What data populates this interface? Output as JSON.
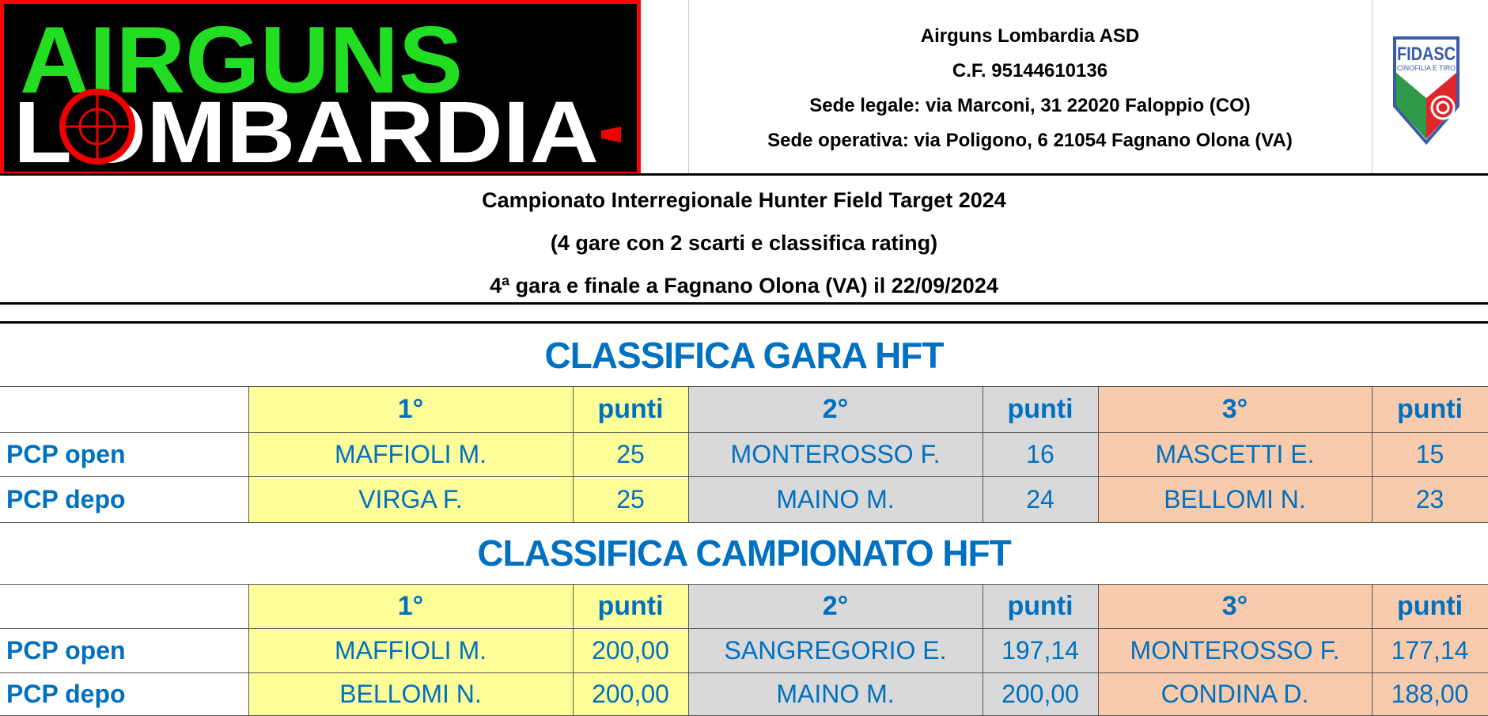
{
  "logo": {
    "line1": "AIRGUNS",
    "line2": "LOMBARDIA",
    "colors": {
      "bg": "#000000",
      "border": "#FF0000",
      "line1": "#22DD22",
      "line2": "#FFFFFF"
    }
  },
  "org": {
    "name": "Airguns Lombardia ASD",
    "cf": "C.F. 95144610136",
    "sede_legale": "Sede legale: via Marconi, 31  22020 Faloppio (CO)",
    "sede_operativa": "Sede operativa: via Poligono, 6  21054 Fagnano Olona (VA)"
  },
  "federation_logo": {
    "title": "FIDASC",
    "subtitle": "CINOFILIA E TIRO"
  },
  "title": {
    "line1": "Campionato Interregionale Hunter Field Target  2024",
    "line2": "(4 gare con 2 scarti e classifica rating)",
    "line3": "4ª gara e finale a Fagnano Olona (VA) il 22/09/2024"
  },
  "colors": {
    "text_blue": "#0070C0",
    "first": "#FFFF99",
    "second": "#D9D9D9",
    "third": "#F8CBAD"
  },
  "sections": [
    {
      "title": "CLASSIFICA GARA HFT",
      "headers": [
        "1°",
        "punti",
        "2°",
        "punti",
        "3°",
        "punti"
      ],
      "rows": [
        {
          "category": "PCP open",
          "cells": [
            "MAFFIOLI M.",
            "25",
            "MONTEROSSO F.",
            "16",
            "MASCETTI E.",
            "15"
          ]
        },
        {
          "category": "PCP depo",
          "cells": [
            "VIRGA F.",
            "25",
            "MAINO M.",
            "24",
            "BELLOMI N.",
            "23"
          ]
        }
      ]
    },
    {
      "title": "CLASSIFICA CAMPIONATO HFT",
      "headers": [
        "1°",
        "punti",
        "2°",
        "punti",
        "3°",
        "punti"
      ],
      "rows": [
        {
          "category": "PCP open",
          "cells": [
            "MAFFIOLI M.",
            "200,00",
            "SANGREGORIO E.",
            "197,14",
            "MONTEROSSO F.",
            "177,14"
          ]
        },
        {
          "category": "PCP depo",
          "cells": [
            "BELLOMI N.",
            "200,00",
            "MAINO M.",
            "200,00",
            "CONDINA D.",
            "188,00"
          ]
        }
      ]
    }
  ]
}
